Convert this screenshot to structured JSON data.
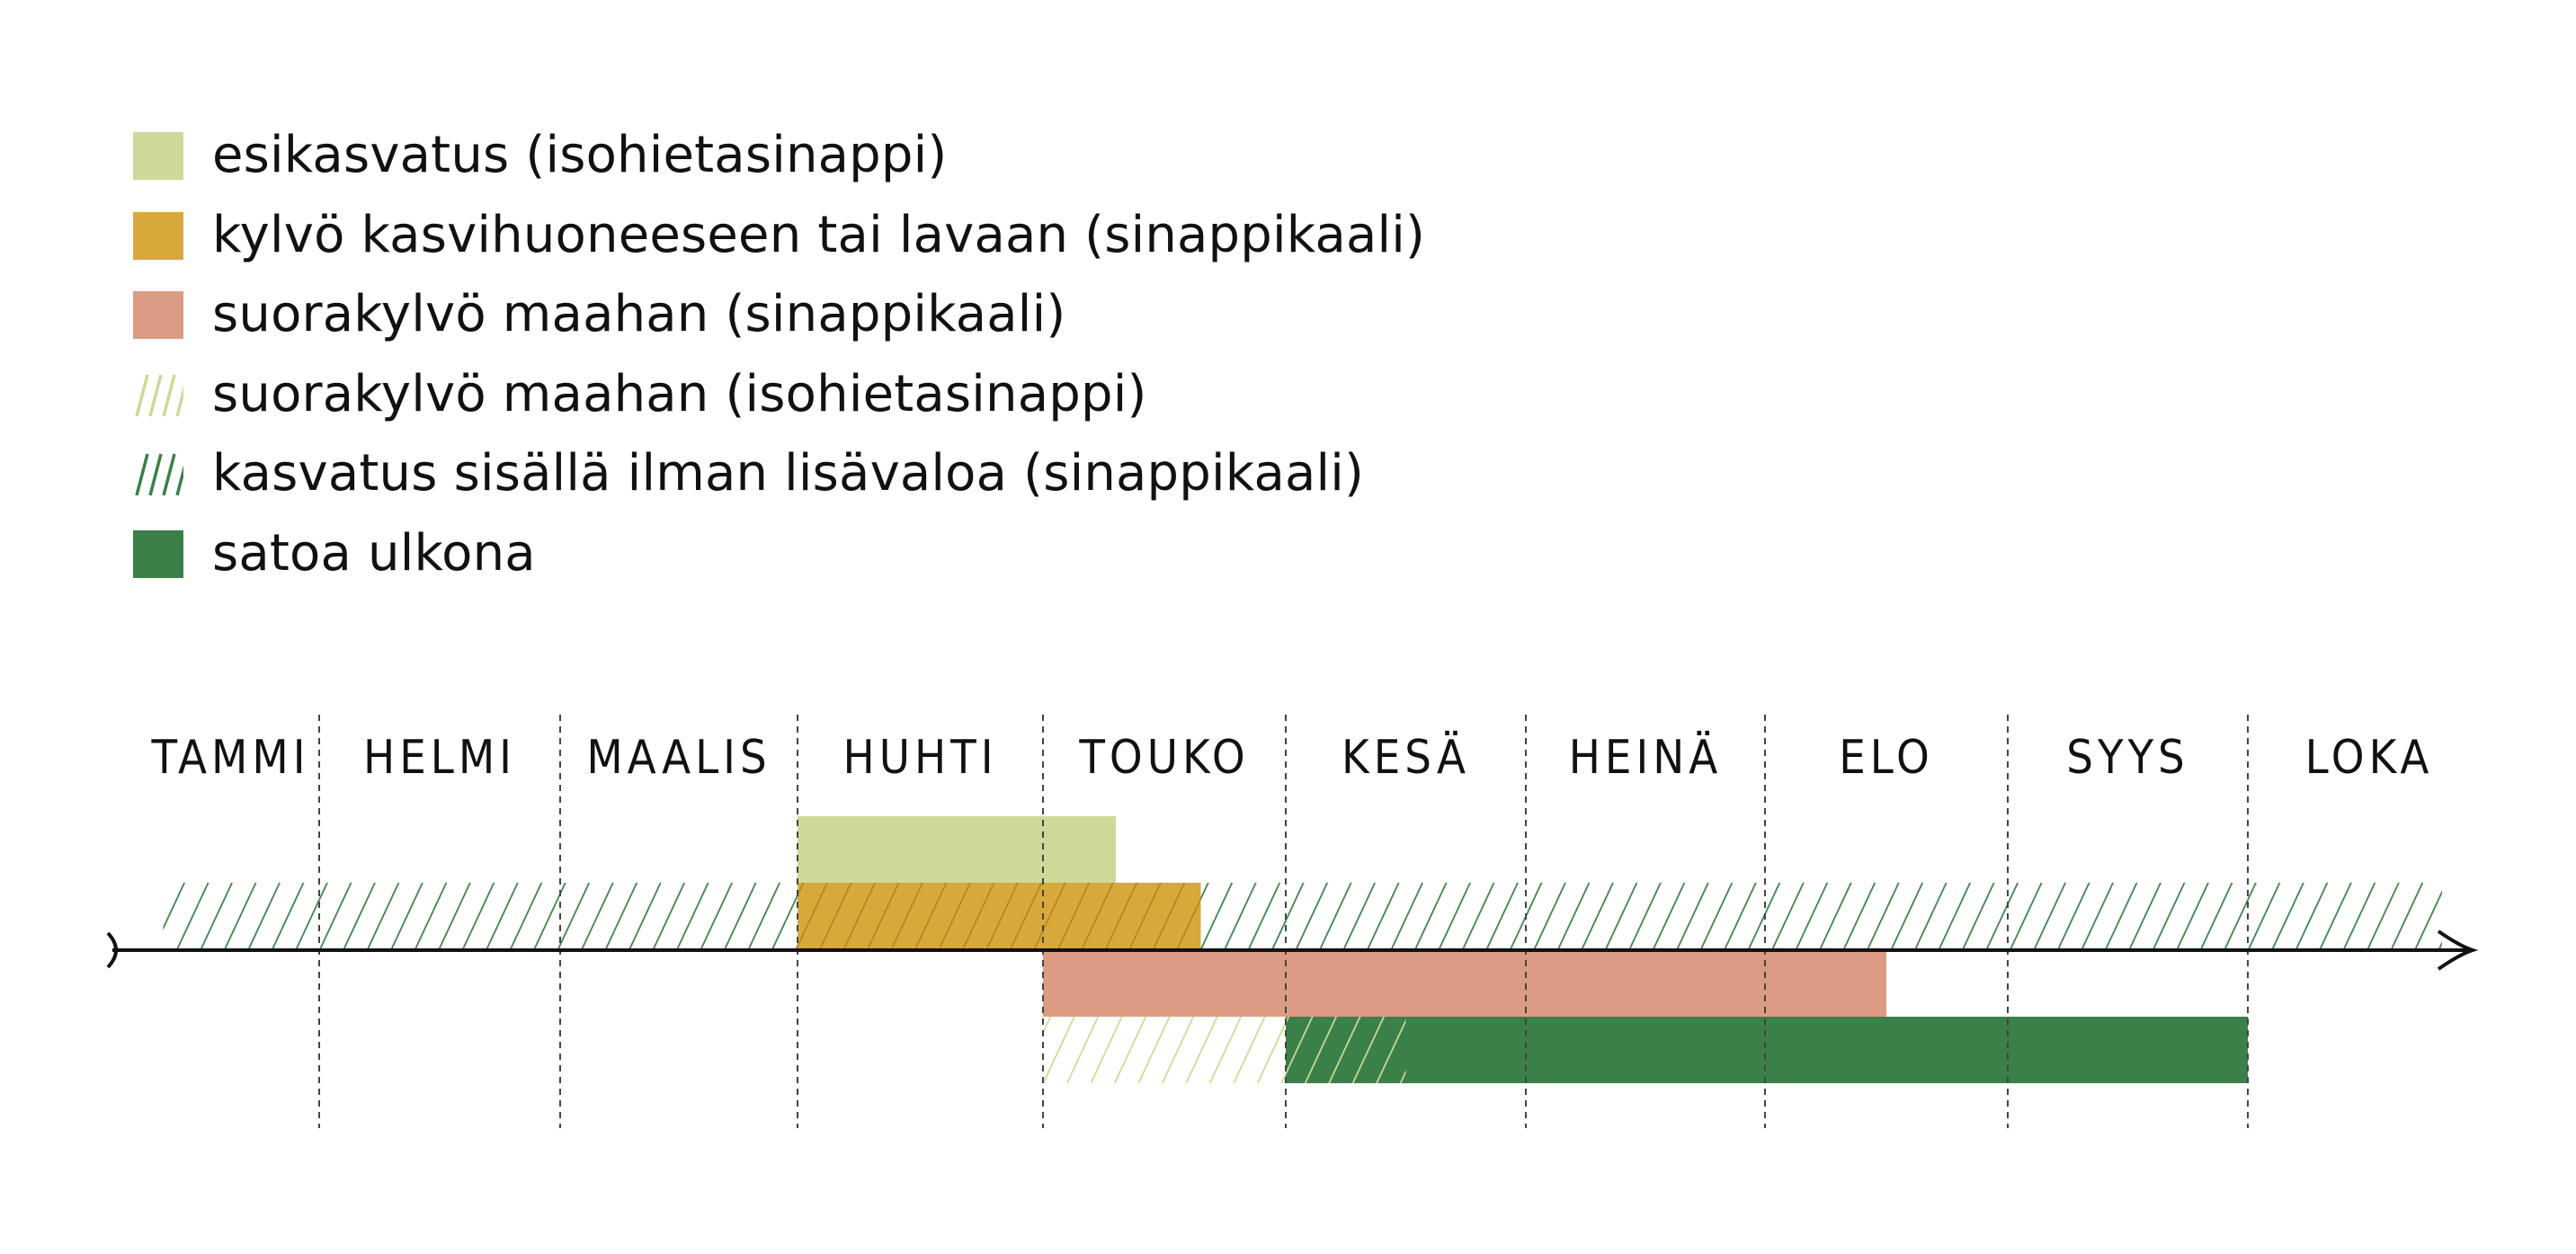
{
  "legend": [
    {
      "id": "esikasvatus",
      "label": "esikasvatus (isohietasinappi)",
      "color": "#cdd998",
      "pattern": "solid"
    },
    {
      "id": "kylvo-kasvihuone",
      "label": "kylvö kasvihuoneeseen tai lavaan (sinappikaali)",
      "color": "#d7a93a",
      "pattern": "solid"
    },
    {
      "id": "suorakylvo-sinappikaali",
      "label": "suorakylvö maahan (sinappikaali)",
      "color": "#dc9b83",
      "pattern": "solid"
    },
    {
      "id": "suorakylvo-isohietasinappi",
      "label": "suorakylvö maahan (isohietasinappi)",
      "color": "#cdd998",
      "pattern": "hatch"
    },
    {
      "id": "kasvatus-sisalla",
      "label": "kasvatus sisällä ilman lisävaloa (sinappikaali)",
      "color": "#3b8048",
      "pattern": "hatch"
    },
    {
      "id": "satoa-ulkona",
      "label": "satoa ulkona",
      "color": "#3b8048",
      "pattern": "solid"
    }
  ],
  "chart_data": {
    "type": "timeline",
    "months": [
      "TAMMI",
      "HELMI",
      "MAALIS",
      "HUHTI",
      "TOUKO",
      "KESÄ",
      "HEINÄ",
      "ELO",
      "SYYS",
      "LOKA"
    ],
    "unit": "month",
    "range": [
      0,
      10
    ],
    "bars": [
      {
        "series": "kasvatus-sisalla",
        "row": "above-2",
        "start": 0.2,
        "end": 9.8
      },
      {
        "series": "esikasvatus",
        "row": "above-1",
        "start": 3.0,
        "end": 4.3
      },
      {
        "series": "kylvo-kasvihuone",
        "row": "above-2",
        "start": 3.0,
        "end": 4.65
      },
      {
        "series": "suorakylvo-sinappikaali",
        "row": "below-1",
        "start": 4.0,
        "end": 7.5
      },
      {
        "series": "suorakylvo-isohietasinappi",
        "row": "below-2",
        "start": 4.0,
        "end": 5.0
      },
      {
        "series": "satoa-ulkona",
        "row": "below-2",
        "start": 5.0,
        "end": 9.0
      },
      {
        "series": "kasvatus-sisalla",
        "row": "below-2",
        "start": 5.0,
        "end": 5.5
      }
    ]
  }
}
